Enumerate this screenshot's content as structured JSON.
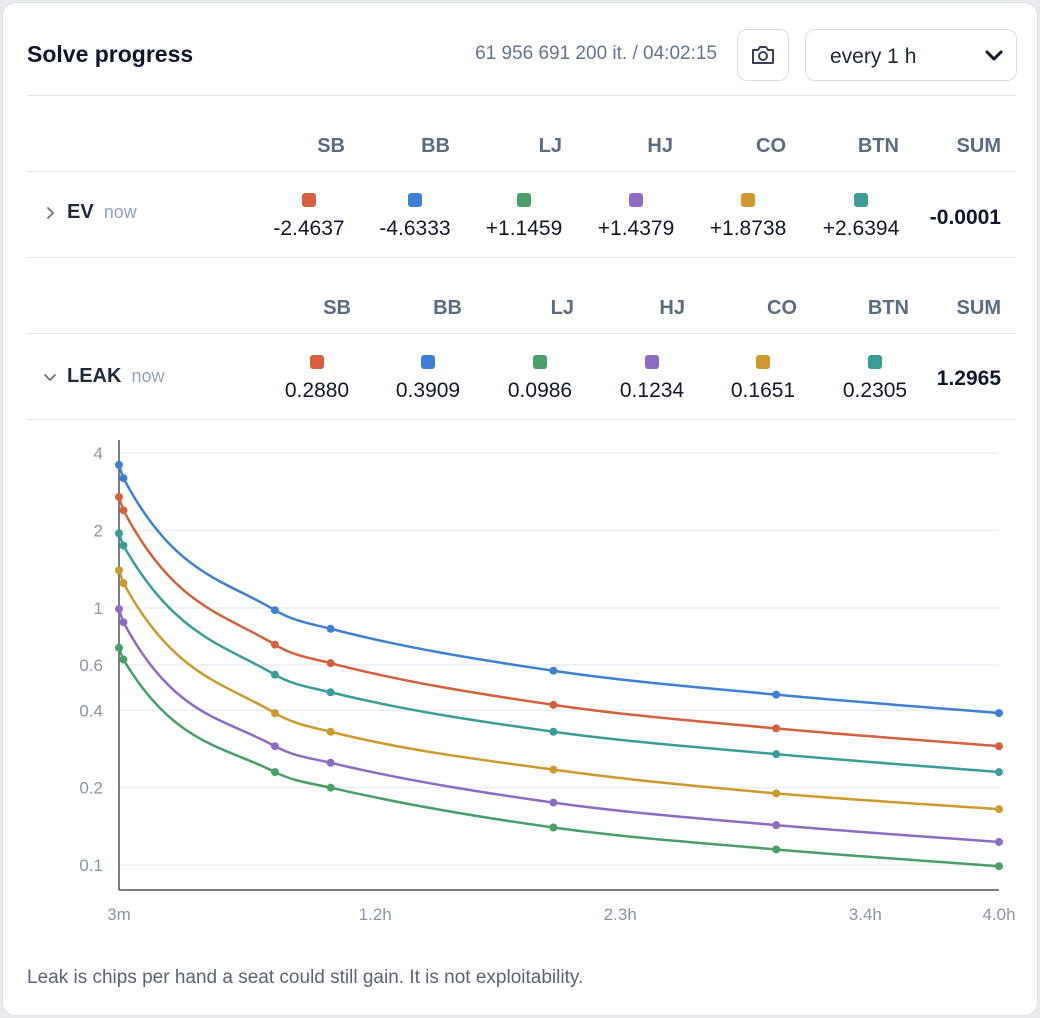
{
  "header": {
    "title": "Solve progress",
    "progress": "61 956 691 200 it. / 04:02:15",
    "interval": "every 1 h"
  },
  "seats": [
    {
      "name": "SB",
      "color": "#d4603e"
    },
    {
      "name": "BB",
      "color": "#3f7fd4"
    },
    {
      "name": "LJ",
      "color": "#4a9e6a"
    },
    {
      "name": "HJ",
      "color": "#8e6cc3"
    },
    {
      "name": "CO",
      "color": "#cc9a2e"
    },
    {
      "name": "BTN",
      "color": "#3a9e97"
    }
  ],
  "sum_label": "SUM",
  "ev": {
    "label": "EV",
    "now": "now",
    "values": [
      "-2.4637",
      "-4.6333",
      "+1.1459",
      "+1.4379",
      "+1.8738",
      "+2.6394"
    ],
    "sum": "-0.0001"
  },
  "leak": {
    "label": "LEAK",
    "now": "now",
    "values": [
      "0.2880",
      "0.3909",
      "0.0986",
      "0.1234",
      "0.1651",
      "0.2305"
    ],
    "sum": "1.2965"
  },
  "chart_data": {
    "type": "line",
    "yscale": "log",
    "ylim": [
      0.08,
      4.5
    ],
    "y_ticks": [
      4,
      2,
      1,
      0.6,
      0.4,
      0.2,
      0.1
    ],
    "y_tick_labels": [
      "4",
      "2",
      "1",
      "0.6",
      "0.4",
      "0.2",
      "0.1"
    ],
    "x_ticks_h": [
      0.05,
      1.2,
      2.3,
      3.4,
      4.0
    ],
    "x_tick_labels": [
      "3m",
      "1.2h",
      "2.3h",
      "3.4h",
      "4.0h"
    ],
    "x_points_h": [
      0.05,
      0.07,
      0.75,
      1.0,
      2.0,
      3.0,
      4.0
    ],
    "grid": true,
    "legend": "none",
    "series": [
      {
        "seat": "BB",
        "color": "#3f7fd4",
        "values": [
          3.6,
          3.2,
          0.98,
          0.83,
          0.57,
          0.46,
          0.39
        ]
      },
      {
        "seat": "SB",
        "color": "#d4603e",
        "values": [
          2.7,
          2.4,
          0.72,
          0.61,
          0.42,
          0.34,
          0.29
        ]
      },
      {
        "seat": "BTN",
        "color": "#3a9e97",
        "values": [
          1.95,
          1.75,
          0.55,
          0.47,
          0.33,
          0.27,
          0.23
        ]
      },
      {
        "seat": "CO",
        "color": "#cc9a2e",
        "values": [
          1.4,
          1.25,
          0.39,
          0.33,
          0.235,
          0.19,
          0.165
        ]
      },
      {
        "seat": "HJ",
        "color": "#8e6cc3",
        "values": [
          0.99,
          0.88,
          0.29,
          0.25,
          0.175,
          0.143,
          0.123
        ]
      },
      {
        "seat": "LJ",
        "color": "#4a9e6a",
        "values": [
          0.7,
          0.63,
          0.23,
          0.2,
          0.14,
          0.115,
          0.099
        ]
      }
    ]
  },
  "footnote": "Leak is chips per hand a seat could still gain. It is not exploitability."
}
